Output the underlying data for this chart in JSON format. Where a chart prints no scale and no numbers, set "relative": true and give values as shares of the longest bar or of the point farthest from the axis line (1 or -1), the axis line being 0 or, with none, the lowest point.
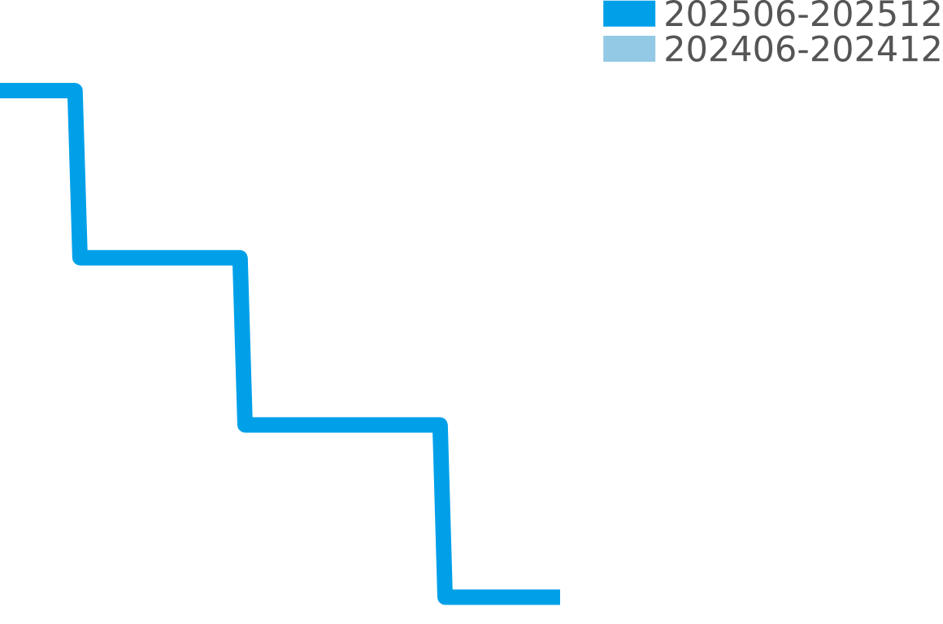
{
  "chart_data": {
    "type": "line",
    "relative": true,
    "legend": "top right",
    "categories": [
      null,
      null,
      null,
      null,
      null,
      null,
      null,
      null,
      null,
      null,
      null,
      null,
      null,
      null,
      null,
      null,
      null,
      null,
      null,
      null,
      null,
      null,
      null,
      null,
      null,
      null,
      null,
      null,
      null,
      null,
      null,
      null,
      null,
      null,
      null,
      null,
      null,
      null,
      null,
      null,
      null,
      null,
      null,
      null,
      null,
      null,
      null,
      null,
      null,
      null,
      null,
      null,
      null,
      null,
      null,
      null,
      null,
      null,
      null,
      null,
      null,
      null,
      null,
      null,
      null,
      null,
      null,
      null,
      null,
      null,
      null,
      null,
      null,
      null,
      null,
      null,
      null,
      null,
      null,
      null,
      null,
      null,
      null,
      null,
      null,
      null,
      null,
      null,
      null,
      null,
      null,
      null,
      null,
      null,
      null,
      null,
      null,
      null,
      null,
      null,
      null,
      null,
      null,
      null,
      null,
      null,
      null,
      null,
      null,
      null,
      null,
      null,
      null
    ],
    "series": [
      {
        "name": "202506-202512",
        "color": "#00a0e9",
        "values": [
          1,
          1,
          1,
          1,
          1,
          1,
          1,
          1,
          1,
          1,
          1,
          1,
          1,
          1,
          1,
          1,
          0.67,
          0.67,
          0.67,
          0.67,
          0.67,
          0.67,
          0.67,
          0.67,
          0.67,
          0.67,
          0.67,
          0.67,
          0.67,
          0.67,
          0.67,
          0.67,
          0.67,
          0.67,
          0.67,
          0.67,
          0.67,
          0.67,
          0.67,
          0.67,
          0.67,
          0.67,
          0.67,
          0.67,
          0.67,
          0.67,
          0.67,
          0.67,
          0.67,
          0.34,
          0.34,
          0.34,
          0.34,
          0.34,
          0.34,
          0.34,
          0.34,
          0.34,
          0.34,
          0.34,
          0.34,
          0.34,
          0.34,
          0.34,
          0.34,
          0.34,
          0.34,
          0.34,
          0.34,
          0.34,
          0.34,
          0.34,
          0.34,
          0.34,
          0.34,
          0.34,
          0.34,
          0.34,
          0.34,
          0.34,
          0.34,
          0.34,
          0.34,
          0.34,
          0.34,
          0.34,
          0.34,
          0.34,
          0.34,
          0,
          0,
          0,
          0,
          0,
          0,
          0,
          0,
          0,
          0,
          0,
          0,
          0,
          0,
          0,
          0,
          0,
          0,
          0,
          0,
          0,
          0,
          0,
          0
        ]
      },
      {
        "name": "202406-202412",
        "color": "#93c9e4",
        "values": [
          null,
          null,
          null,
          null,
          null,
          null,
          null,
          null,
          null,
          null,
          null,
          null,
          null,
          null,
          null,
          null,
          null,
          null,
          null,
          null,
          null,
          null,
          null,
          null,
          null,
          null,
          null,
          null,
          null,
          null,
          null,
          null,
          null,
          null,
          null,
          null,
          null,
          null,
          null,
          null,
          null,
          null,
          null,
          null,
          null,
          null,
          null,
          null,
          null,
          null,
          null,
          null,
          null,
          null,
          null,
          null,
          null,
          null,
          null,
          null,
          null,
          null,
          null,
          null,
          null,
          null,
          null,
          null,
          null,
          null,
          null,
          null,
          null,
          null,
          null,
          null,
          null,
          null,
          null,
          null,
          null,
          null,
          null,
          null,
          null,
          null,
          null,
          null,
          null,
          null,
          null,
          null,
          null,
          null,
          null,
          null,
          null,
          null,
          null,
          null,
          null,
          null,
          null,
          null,
          null,
          null,
          null,
          null,
          null,
          null,
          null,
          null,
          null
        ]
      }
    ]
  }
}
